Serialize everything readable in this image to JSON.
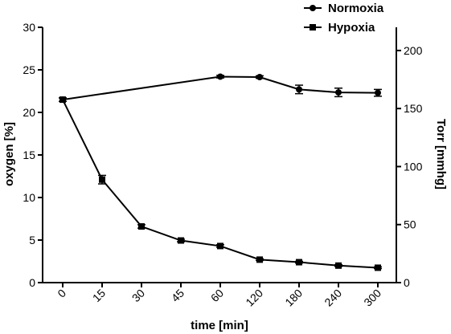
{
  "chart_data": {
    "type": "line",
    "categories": [
      "0",
      "15",
      "30",
      "45",
      "60",
      "120",
      "180",
      "240",
      "300"
    ],
    "series": [
      {
        "name": "Normoxia",
        "marker": "circle",
        "values": [
          21.5,
          null,
          null,
          null,
          24.2,
          24.15,
          22.7,
          22.35,
          22.3
        ],
        "errors": [
          0.2,
          null,
          null,
          null,
          0.15,
          0.15,
          0.5,
          0.5,
          0.4
        ]
      },
      {
        "name": "Hypoxia",
        "marker": "square",
        "values": [
          21.5,
          12.1,
          6.6,
          4.95,
          4.3,
          2.7,
          2.4,
          2.0,
          1.75
        ],
        "errors": [
          0.2,
          0.5,
          0.2,
          0.15,
          0.15,
          0.1,
          0.1,
          0.1,
          0.1
        ]
      }
    ],
    "xlabel": "time [min]",
    "ylabel": "oxygen [%]",
    "y2label": "Torr [mmhg]",
    "ylim": [
      0,
      30
    ],
    "y2lim": [
      0,
      220
    ],
    "yticks": [
      "0",
      "5",
      "10",
      "15",
      "20",
      "25",
      "30"
    ],
    "y2ticks": [
      "0",
      "50",
      "100",
      "150",
      "200"
    ],
    "grid": false,
    "legend_position": "top-right",
    "color": "#000000"
  }
}
